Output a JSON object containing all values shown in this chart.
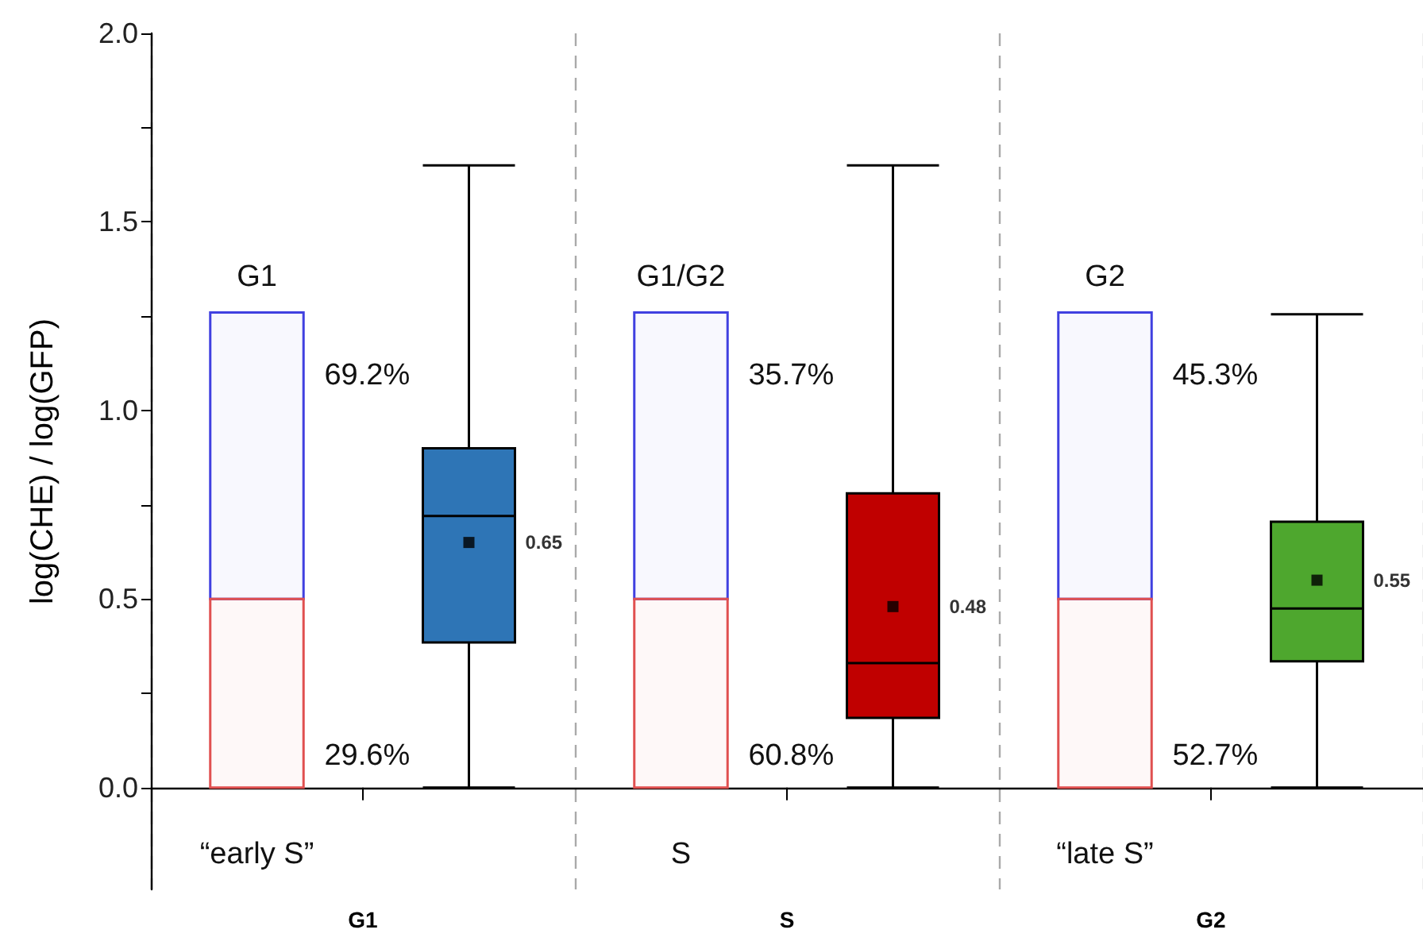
{
  "chart_data": {
    "type": "box",
    "ylabel": "log(CHE) / log(GFP)",
    "categories": [
      "G1",
      "S",
      "G2"
    ],
    "colors": [
      "#2e75b6",
      "#c00000",
      "#4ea72e"
    ],
    "boxes": [
      {
        "low": 0,
        "q1": 0.385,
        "median": 0.72,
        "q3": 0.9,
        "high": 1.65,
        "mean": 0.65
      },
      {
        "low": 0,
        "q1": 0.185,
        "median": 0.33,
        "q3": 0.78,
        "high": 1.65,
        "mean": 0.48
      },
      {
        "low": 0,
        "q1": 0.335,
        "median": 0.475,
        "q3": 0.705,
        "high": 1.255,
        "mean": 0.55
      }
    ],
    "value_labels": [
      "0.65",
      "0.48",
      "0.55"
    ],
    "ylim": [
      -0.27,
      2.0
    ],
    "yticks": [
      {
        "value": 0,
        "label": "0.0"
      },
      {
        "value": 0.25,
        "label": null
      },
      0.5,
      {
        "value": 0.75,
        "label": null
      },
      {
        "value": 1,
        "label": "1.0"
      },
      {
        "value": 1.25,
        "label": null
      },
      1.5,
      {
        "value": 1.75,
        "label": null
      },
      {
        "value": 2,
        "label": "2.0"
      }
    ],
    "grid": "x",
    "series": [
      {
        "type": "bar",
        "color": "#e05050",
        "values": [
          0.5,
          0.5,
          0.5
        ],
        "base": [
          0,
          0,
          0
        ]
      },
      {
        "type": "bar",
        "color": "#4040e0",
        "values": [
          0.76,
          0.76,
          0.76
        ],
        "base": [
          0.5,
          0.5,
          0.5
        ]
      }
    ],
    "annotations": [
      "G1",
      "69.2%",
      "29.6%",
      "“early S”",
      "G1/G2",
      "35.7%",
      "60.8%",
      "S",
      "G2",
      "45.3%",
      "52.7%",
      "“late S”"
    ]
  }
}
